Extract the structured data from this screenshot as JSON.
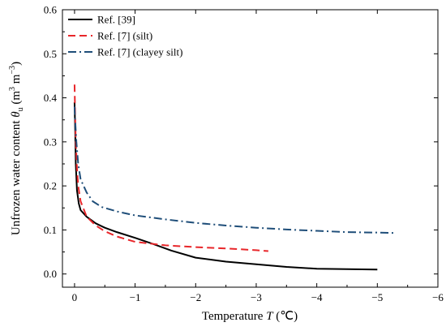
{
  "chart_data": {
    "type": "line",
    "xlabel": {
      "text": "Temperature ",
      "var": "T",
      "unit": " (℃)"
    },
    "ylabel": {
      "text": "Unfrozen water content ",
      "var": "θ",
      "sub": "u",
      "unit_open": " (m",
      "sup1": "3",
      "unit_mid": " m",
      "sup2": "−3",
      "unit_close": ")"
    },
    "xlim": [
      0.2,
      -6
    ],
    "ylim": [
      -0.03,
      0.6
    ],
    "x_ticks": [
      0,
      -1,
      -2,
      -3,
      -4,
      -5,
      -6
    ],
    "x_tick_labels": [
      "0",
      "−1",
      "−2",
      "−3",
      "−4",
      "−5",
      "−6"
    ],
    "y_ticks": [
      0.0,
      0.1,
      0.2,
      0.3,
      0.4,
      0.5,
      0.6
    ],
    "y_tick_labels": [
      "0.0",
      "0.1",
      "0.2",
      "0.3",
      "0.4",
      "0.5",
      "0.6"
    ],
    "legend_position": "top-left",
    "grid": false,
    "series": [
      {
        "name": "Ref. [39]",
        "color": "#000000",
        "style": "solid",
        "points": [
          [
            0.0,
            0.39
          ],
          [
            -0.01,
            0.33
          ],
          [
            -0.02,
            0.25
          ],
          [
            -0.04,
            0.19
          ],
          [
            -0.07,
            0.16
          ],
          [
            -0.1,
            0.145
          ],
          [
            -0.2,
            0.13
          ],
          [
            -0.35,
            0.115
          ],
          [
            -0.5,
            0.105
          ],
          [
            -0.7,
            0.095
          ],
          [
            -1.0,
            0.082
          ],
          [
            -1.3,
            0.068
          ],
          [
            -1.6,
            0.053
          ],
          [
            -2.0,
            0.037
          ],
          [
            -2.5,
            0.028
          ],
          [
            -3.0,
            0.022
          ],
          [
            -3.5,
            0.016
          ],
          [
            -4.0,
            0.012
          ],
          [
            -4.5,
            0.011
          ],
          [
            -5.0,
            0.01
          ]
        ]
      },
      {
        "name": "Ref. [7] (silt)",
        "color": "#e8262a",
        "style": "dashed",
        "points": [
          [
            0.0,
            0.43
          ],
          [
            -0.01,
            0.36
          ],
          [
            -0.02,
            0.3
          ],
          [
            -0.04,
            0.24
          ],
          [
            -0.06,
            0.2
          ],
          [
            -0.1,
            0.165
          ],
          [
            -0.2,
            0.13
          ],
          [
            -0.35,
            0.11
          ],
          [
            -0.5,
            0.097
          ],
          [
            -0.7,
            0.085
          ],
          [
            -1.0,
            0.073
          ],
          [
            -1.5,
            0.065
          ],
          [
            -2.0,
            0.061
          ],
          [
            -2.5,
            0.058
          ],
          [
            -3.0,
            0.054
          ],
          [
            -3.2,
            0.052
          ]
        ]
      },
      {
        "name": "Ref. [7] (clayey silt)",
        "color": "#1f4e79",
        "style": "dashdot",
        "points": [
          [
            0.0,
            0.38
          ],
          [
            -0.01,
            0.35
          ],
          [
            -0.03,
            0.3
          ],
          [
            -0.06,
            0.25
          ],
          [
            -0.1,
            0.215
          ],
          [
            -0.2,
            0.185
          ],
          [
            -0.3,
            0.165
          ],
          [
            -0.45,
            0.152
          ],
          [
            -0.7,
            0.142
          ],
          [
            -1.0,
            0.133
          ],
          [
            -1.5,
            0.124
          ],
          [
            -2.0,
            0.116
          ],
          [
            -2.5,
            0.11
          ],
          [
            -3.0,
            0.105
          ],
          [
            -3.5,
            0.101
          ],
          [
            -4.0,
            0.098
          ],
          [
            -4.5,
            0.095
          ],
          [
            -5.0,
            0.094
          ],
          [
            -5.3,
            0.093
          ]
        ]
      }
    ]
  }
}
